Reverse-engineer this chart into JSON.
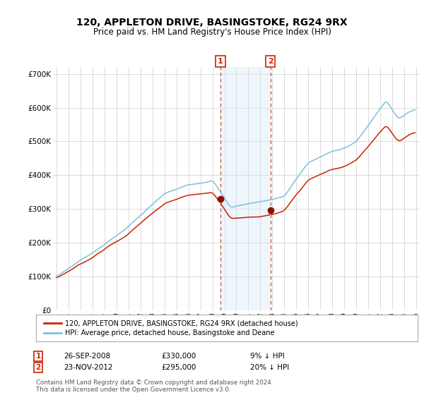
{
  "title": "120, APPLETON DRIVE, BASINGSTOKE, RG24 9RX",
  "subtitle": "Price paid vs. HM Land Registry's House Price Index (HPI)",
  "ylim": [
    0,
    720000
  ],
  "yticks": [
    0,
    100000,
    200000,
    300000,
    400000,
    500000,
    600000,
    700000
  ],
  "ytick_labels": [
    "£0",
    "£100K",
    "£200K",
    "£300K",
    "£400K",
    "£500K",
    "£600K",
    "£700K"
  ],
  "sale1_year": 2008,
  "sale1_month": 9,
  "sale1_price": 330000,
  "sale1_date": "26-SEP-2008",
  "sale1_hpi_diff": "9% ↓ HPI",
  "sale2_year": 2012,
  "sale2_month": 11,
  "sale2_price": 295000,
  "sale2_date": "23-NOV-2012",
  "sale2_hpi_diff": "20% ↓ HPI",
  "legend_line1": "120, APPLETON DRIVE, BASINGSTOKE, RG24 9RX (detached house)",
  "legend_line2": "HPI: Average price, detached house, Basingstoke and Deane",
  "footer": "Contains HM Land Registry data © Crown copyright and database right 2024.\nThis data is licensed under the Open Government Licence v3.0.",
  "hpi_color": "#7fbfdf",
  "price_color": "#cc2200",
  "sale_marker_color": "#881100",
  "annotation_box_color": "#cc2200",
  "shading_color": "#d0e8f5",
  "background_color": "#ffffff",
  "grid_color": "#cccccc",
  "xstart": 1995,
  "xend": 2025
}
